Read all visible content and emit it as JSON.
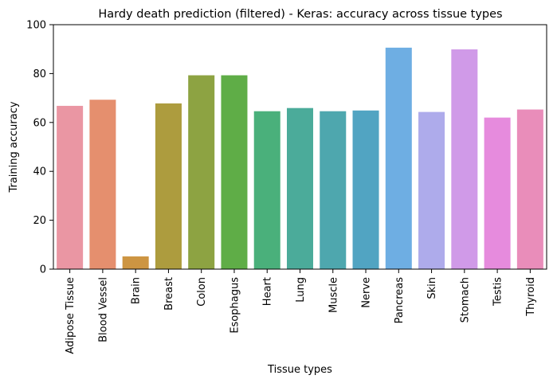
{
  "chart_data": {
    "type": "bar",
    "title": "Hardy death prediction (filtered) - Keras: accuracy across tissue types",
    "xlabel": "Tissue types",
    "ylabel": "Training accuracy",
    "ylim": [
      0,
      100
    ],
    "yticks": [
      0,
      20,
      40,
      60,
      80,
      100
    ],
    "grid": false,
    "categories": [
      "Adipose Tissue",
      "Blood Vessel",
      "Brain",
      "Breast",
      "Colon",
      "Esophagus",
      "Heart",
      "Lung",
      "Muscle",
      "Nerve",
      "Pancreas",
      "Skin",
      "Stomach",
      "Testis",
      "Thyroid"
    ],
    "values": [
      66.8,
      69.3,
      5.2,
      67.8,
      79.3,
      79.3,
      64.6,
      65.9,
      64.6,
      64.9,
      90.6,
      64.3,
      89.9,
      62.0,
      65.3
    ],
    "colors": [
      "#ea96a3",
      "#e58f6e",
      "#cd9542",
      "#ad9c3e",
      "#8da342",
      "#5fad47",
      "#4ab07b",
      "#4bab9a",
      "#4ea7ae",
      "#51a4c2",
      "#6eaee3",
      "#aeabeb",
      "#d09ae8",
      "#e68bdd",
      "#e98dba"
    ]
  }
}
